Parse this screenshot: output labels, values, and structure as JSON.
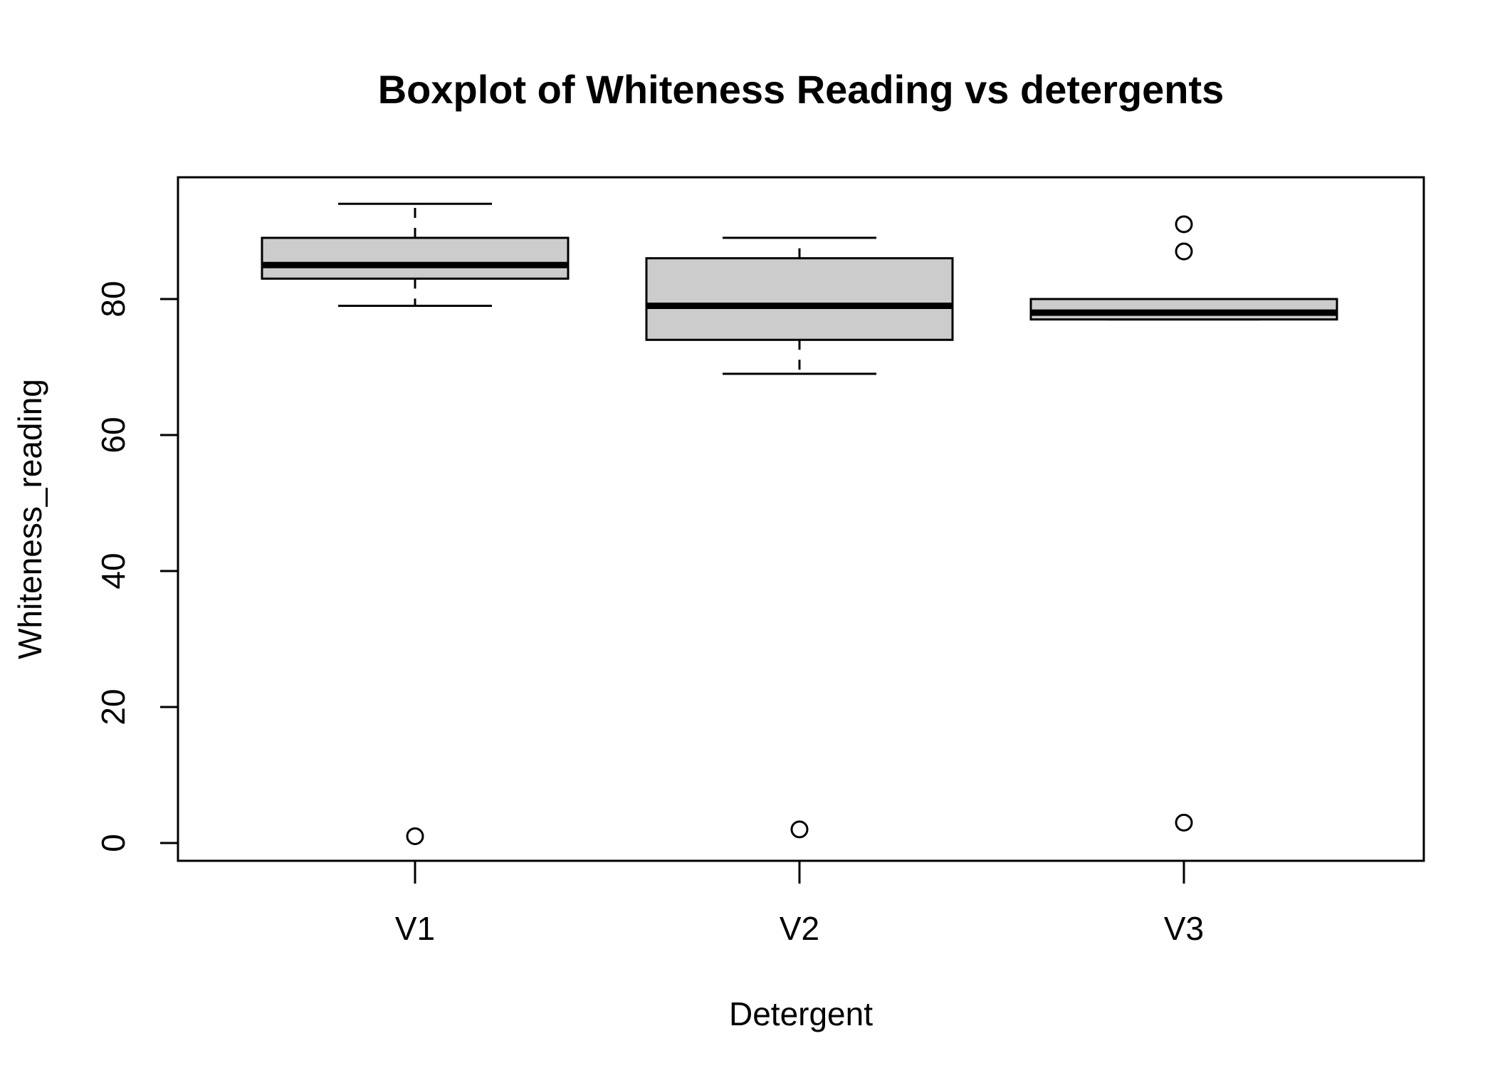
{
  "chart_data": {
    "type": "boxplot",
    "title": "Boxplot of Whiteness Reading vs detergents",
    "xlabel": "Detergent",
    "ylabel": "Whiteness_reading",
    "ylim": [
      0,
      97
    ],
    "yticks": [
      "0",
      "20",
      "40",
      "60",
      "80"
    ],
    "categories": [
      "V1",
      "V2",
      "V3"
    ],
    "boxes": [
      {
        "category": "V1",
        "whisker_low": 79,
        "q1": 83,
        "median": 85,
        "q3": 89,
        "whisker_high": 94,
        "outliers": [
          1
        ]
      },
      {
        "category": "V2",
        "whisker_low": 69,
        "q1": 74,
        "median": 79,
        "q3": 86,
        "whisker_high": 89,
        "outliers": [
          2
        ]
      },
      {
        "category": "V3",
        "whisker_low": 77,
        "q1": 77,
        "median": 78,
        "q3": 80,
        "whisker_high": 80,
        "outliers": [
          3,
          87,
          91
        ]
      }
    ],
    "box_fill": "#cccccc",
    "line_color": "#000000",
    "grid": false,
    "legend": "none"
  }
}
